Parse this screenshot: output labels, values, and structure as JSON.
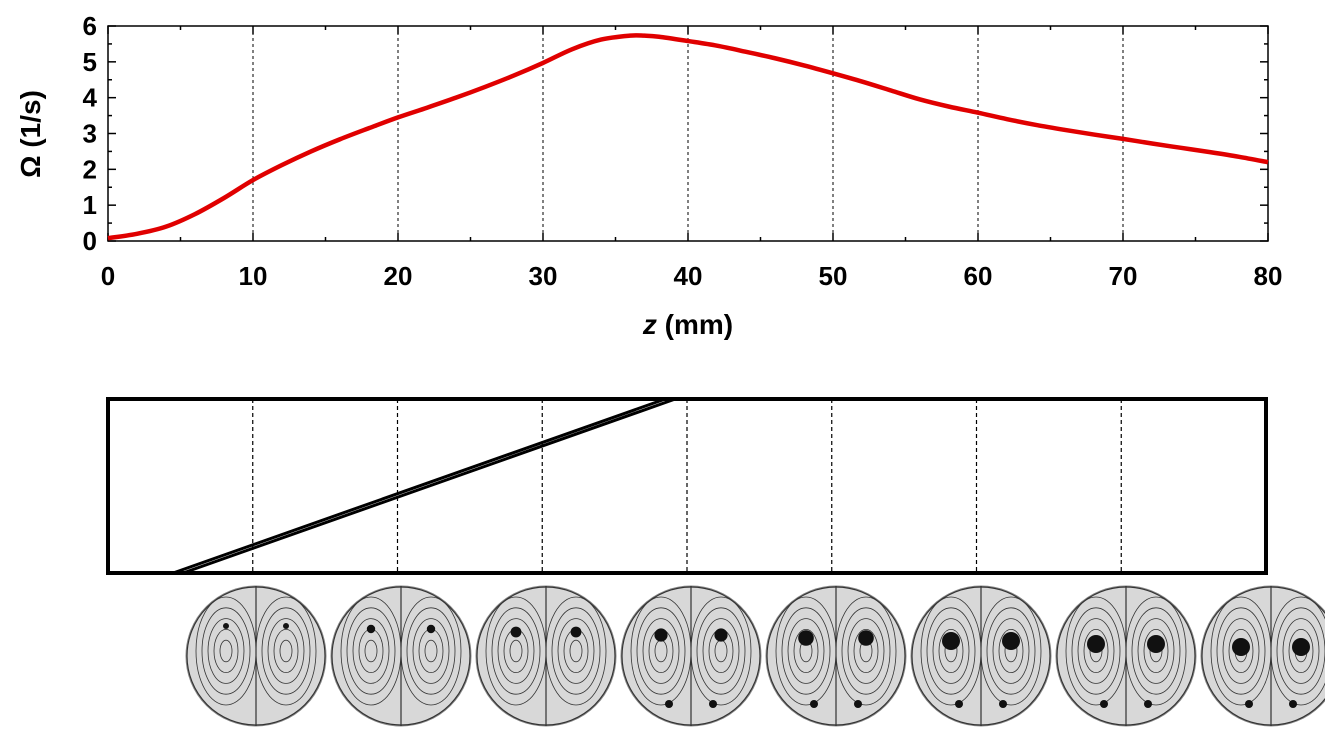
{
  "chart_data": {
    "type": "line",
    "title": "",
    "xlabel_var": "z",
    "xlabel_unit": " (mm)",
    "ylabel": "Ω (1/s)",
    "xlim": [
      0,
      80
    ],
    "ylim": [
      0,
      6
    ],
    "x_ticks": [
      "0",
      "10",
      "20",
      "30",
      "40",
      "50",
      "60",
      "70",
      "80"
    ],
    "y_ticks": [
      "0",
      "1",
      "2",
      "3",
      "4",
      "5",
      "6"
    ],
    "vertical_gridlines": [
      10,
      20,
      30,
      40,
      50,
      60,
      70
    ],
    "grid_style": "dashed vertical",
    "series": [
      {
        "color": "#e00000",
        "x": [
          0,
          2,
          4,
          6,
          8,
          10,
          12,
          14,
          16,
          18,
          20,
          22,
          24,
          26,
          28,
          30,
          32,
          34,
          36,
          37,
          38,
          40,
          42,
          44,
          46,
          48,
          50,
          52,
          54,
          56,
          58,
          60,
          62,
          64,
          66,
          68,
          70,
          72,
          74,
          76,
          78,
          80
        ],
        "y": [
          0.08,
          0.2,
          0.4,
          0.75,
          1.2,
          1.7,
          2.12,
          2.5,
          2.84,
          3.15,
          3.45,
          3.72,
          4.0,
          4.3,
          4.62,
          4.97,
          5.35,
          5.62,
          5.73,
          5.73,
          5.7,
          5.58,
          5.45,
          5.28,
          5.1,
          4.9,
          4.68,
          4.45,
          4.2,
          3.95,
          3.75,
          3.58,
          3.4,
          3.24,
          3.1,
          2.97,
          2.85,
          2.72,
          2.6,
          2.48,
          2.35,
          2.2
        ]
      }
    ]
  },
  "schematic": {
    "type": "diagram",
    "vertical_dashed_at_z": [
      10,
      20,
      30,
      40,
      50,
      60,
      70
    ],
    "tilted_line_start_z": 4.5,
    "tilted_line_end_z": 38.5
  },
  "flow_images": {
    "count": 8,
    "fill_color": "#d8d8d8",
    "stroke_color": "#333333",
    "vortex_color": "#111111"
  }
}
